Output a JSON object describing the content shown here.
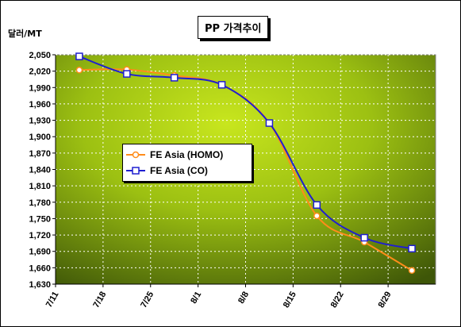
{
  "chart_data": {
    "type": "line",
    "title": "PP 가격추이",
    "ylabel": "달러/MT",
    "xlabel": "",
    "categories": [
      "7/11",
      "7/18",
      "7/25",
      "8/1",
      "8/8",
      "8/15",
      "8/22",
      "8/29"
    ],
    "ylim": [
      1630,
      2050
    ],
    "yticks": [
      1630,
      1660,
      1690,
      1720,
      1750,
      1780,
      1810,
      1840,
      1870,
      1900,
      1930,
      1960,
      1990,
      2020,
      2050
    ],
    "ytick_labels": [
      "1,630",
      "1,660",
      "1,690",
      "1,720",
      "1,750",
      "1,780",
      "1,810",
      "1,840",
      "1,870",
      "1,900",
      "1,930",
      "1,960",
      "1,990",
      "2,020",
      "2,050"
    ],
    "grid": true,
    "legend_position": "center-left",
    "series": [
      {
        "name": "FE Asia (HOMO)",
        "color": "#ff8c1a",
        "marker": "circle",
        "values": [
          2022,
          2023,
          2012,
          1995,
          1925,
          1755,
          1707,
          1655
        ]
      },
      {
        "name": "FE Asia (CO)",
        "color": "#1f1fd0",
        "marker": "square",
        "values": [
          2047,
          2015,
          2008,
          1995,
          1925,
          1775,
          1715,
          1695
        ]
      }
    ]
  }
}
